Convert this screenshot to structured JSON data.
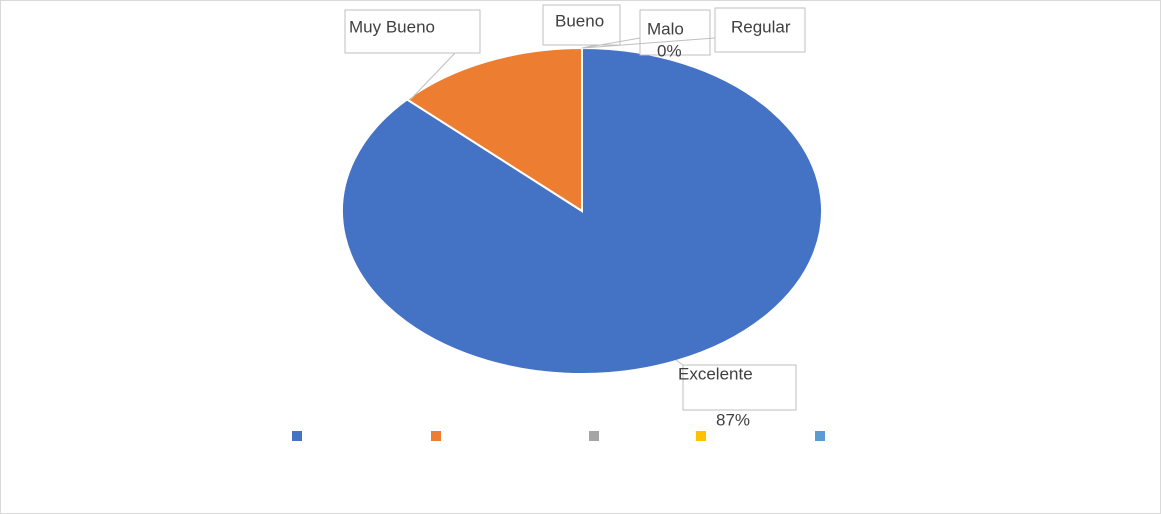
{
  "chart_data": {
    "type": "pie",
    "categories": [
      "Excelente",
      "Muy Bueno",
      "Bueno",
      "Malo",
      "Regular"
    ],
    "values": [
      87,
      13,
      0,
      0,
      0
    ],
    "value_labels": [
      "87%",
      null,
      null,
      "0%",
      null
    ],
    "colors": [
      "#4472c4",
      "#ed7d31",
      "#a5a5a5",
      "#ffc000",
      "#5b9bd5"
    ],
    "legend": "bottom"
  }
}
